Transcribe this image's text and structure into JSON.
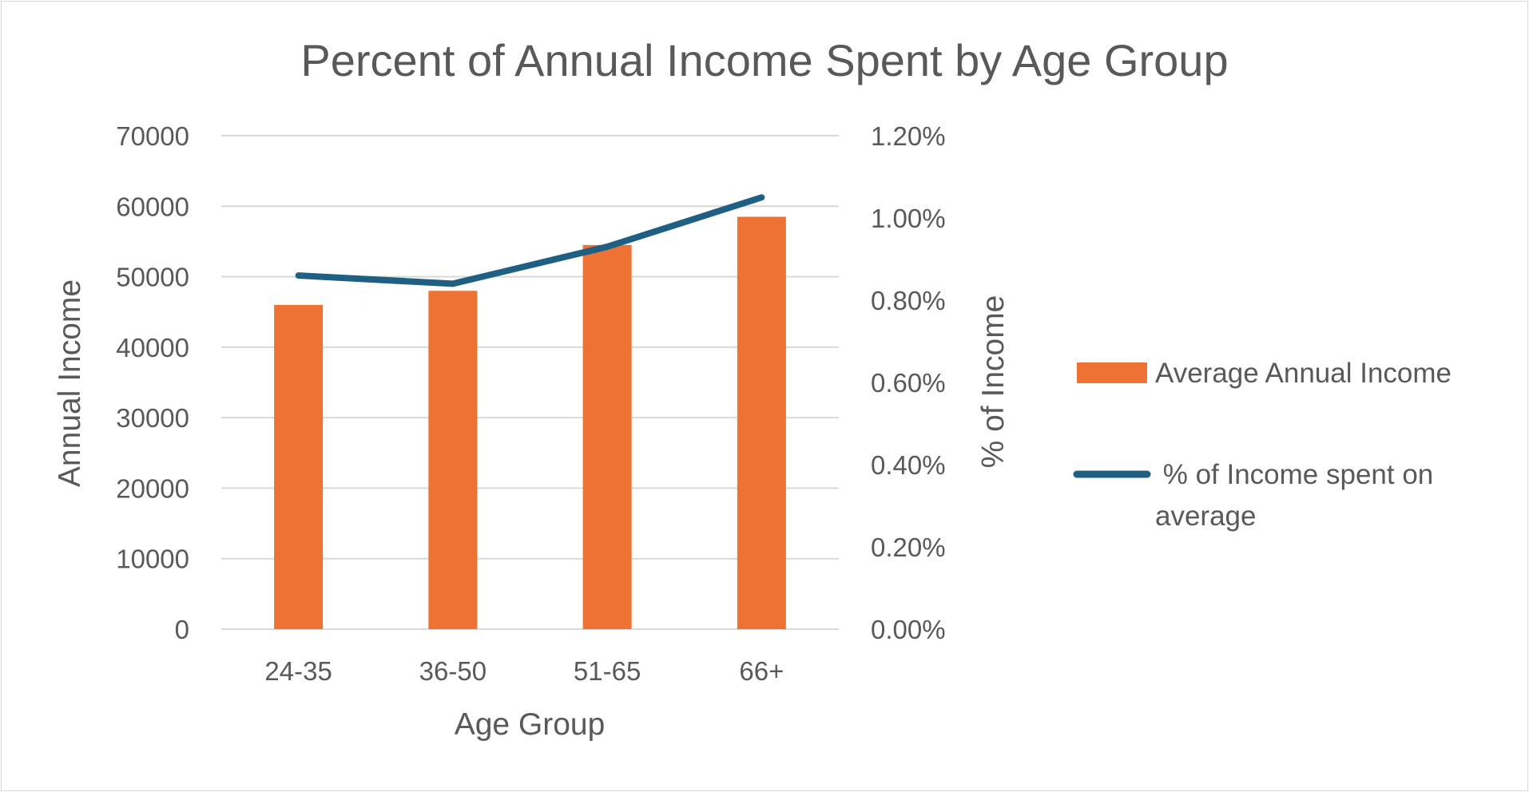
{
  "chart_data": {
    "type": "bar",
    "title": "Percent of Annual Income Spent by Age Group",
    "xlabel": "Age Group",
    "ylabel": "Annual Income",
    "y2label": "% of Income",
    "categories": [
      "24-35",
      "36-50",
      "51-65",
      "66+"
    ],
    "ylim": [
      0,
      70000
    ],
    "y_ticks": [
      "0",
      "10000",
      "20000",
      "30000",
      "40000",
      "50000",
      "60000",
      "70000"
    ],
    "y2lim": [
      0,
      0.012
    ],
    "y2_ticks": [
      "0.00%",
      "0.20%",
      "0.40%",
      "0.60%",
      "0.80%",
      "1.00%",
      "1.20%"
    ],
    "grid": true,
    "legend_position": "right",
    "series": [
      {
        "name": "Average Annual Income",
        "type": "bar",
        "axis": "left",
        "color": "#ED7234",
        "values": [
          46000,
          48000,
          54500,
          58500
        ]
      },
      {
        "name": "% of Income spent on average",
        "legend_lines": [
          " % of Income spent on",
          "average"
        ],
        "type": "line",
        "axis": "right",
        "color": "#1F5F84",
        "values": [
          0.0086,
          0.0084,
          0.0093,
          0.0105
        ]
      }
    ],
    "gridline_color": "#d9d9d9",
    "text_color": "#595959"
  }
}
